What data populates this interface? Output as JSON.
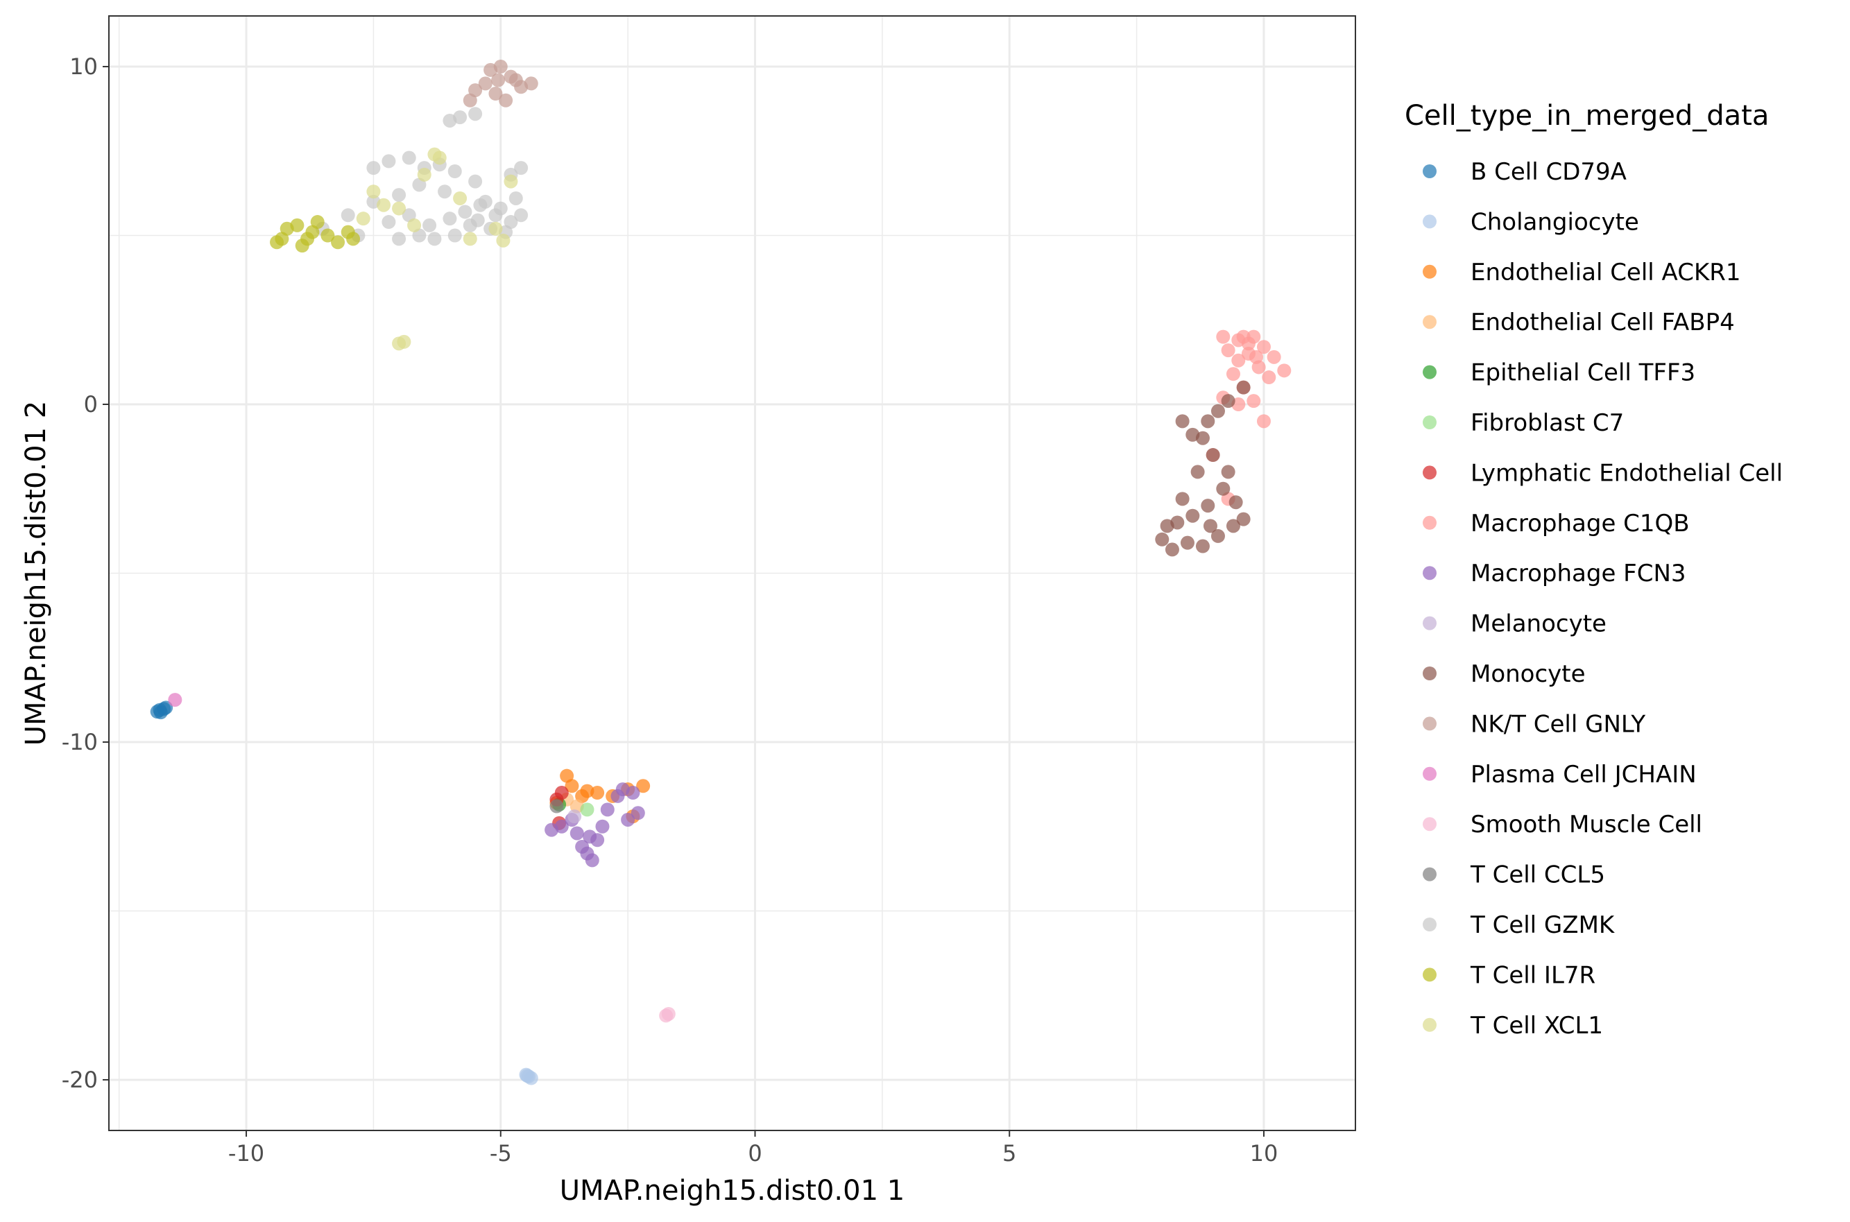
{
  "chart_data": {
    "type": "scatter",
    "title": "",
    "xlabel": "UMAP.neigh15.dist0.01 1",
    "ylabel": "UMAP.neigh15.dist0.01 2",
    "xlim": [
      -12.7,
      11.8
    ],
    "ylim": [
      -21.5,
      11.5
    ],
    "x_ticks": [
      -10,
      -5,
      0,
      5,
      10
    ],
    "x_tick_labels": [
      "-10",
      "-5",
      "0",
      "5",
      "10"
    ],
    "y_ticks": [
      -20,
      -10,
      0,
      10
    ],
    "y_tick_labels": [
      "-20",
      "-10",
      "0",
      "10"
    ],
    "grid": true,
    "legend": {
      "title": "Cell_type_in_merged_data",
      "position": "right"
    },
    "series": [
      {
        "name": "B Cell CD79A",
        "color": "#1f77b4",
        "points": [
          [
            -11.75,
            -9.1
          ],
          [
            -11.7,
            -9.05
          ],
          [
            -11.62,
            -9.02
          ],
          [
            -11.58,
            -8.98
          ],
          [
            -11.68,
            -9.12
          ]
        ]
      },
      {
        "name": "Cholangiocyte",
        "color": "#aec7e8",
        "points": [
          [
            -4.5,
            -19.85
          ],
          [
            -4.45,
            -19.9
          ],
          [
            -4.4,
            -19.95
          ],
          [
            -4.48,
            -19.88
          ]
        ]
      },
      {
        "name": "Endothelial Cell ACKR1",
        "color": "#ff7f0e",
        "points": [
          [
            -3.7,
            -11.0
          ],
          [
            -3.6,
            -11.3
          ],
          [
            -3.4,
            -11.6
          ],
          [
            -3.1,
            -11.5
          ],
          [
            -2.8,
            -11.6
          ],
          [
            -2.5,
            -11.4
          ],
          [
            -2.2,
            -11.3
          ],
          [
            -2.4,
            -12.2
          ],
          [
            -3.9,
            -11.8
          ],
          [
            -3.3,
            -11.45
          ]
        ]
      },
      {
        "name": "Endothelial Cell FABP4",
        "color": "#ffbb78",
        "points": [
          [
            -3.5,
            -11.9
          ],
          [
            -3.7,
            -11.7
          ]
        ]
      },
      {
        "name": "Epithelial Cell TFF3",
        "color": "#2ca02c",
        "points": [
          [
            -3.85,
            -11.85
          ]
        ]
      },
      {
        "name": "Fibroblast C7",
        "color": "#98df8a",
        "points": [
          [
            -3.3,
            -12.0
          ]
        ]
      },
      {
        "name": "Lymphatic Endothelial Cell",
        "color": "#d62728",
        "points": [
          [
            -3.8,
            -11.5
          ],
          [
            -3.9,
            -11.7
          ],
          [
            -3.85,
            -12.4
          ]
        ]
      },
      {
        "name": "Macrophage C1QB",
        "color": "#ff9896",
        "points": [
          [
            9.2,
            2.0
          ],
          [
            9.5,
            1.9
          ],
          [
            9.8,
            2.0
          ],
          [
            10.0,
            1.7
          ],
          [
            10.2,
            1.4
          ],
          [
            10.4,
            1.0
          ],
          [
            9.7,
            1.5
          ],
          [
            9.9,
            1.1
          ],
          [
            9.5,
            1.3
          ],
          [
            9.4,
            0.9
          ],
          [
            9.6,
            0.5
          ],
          [
            9.8,
            0.1
          ],
          [
            10.0,
            -0.5
          ],
          [
            9.3,
            1.6
          ],
          [
            10.1,
            0.8
          ],
          [
            9.7,
            1.8
          ],
          [
            9.2,
            0.2
          ],
          [
            9.0,
            -1.5
          ],
          [
            9.3,
            -2.8
          ],
          [
            9.5,
            0.0
          ],
          [
            9.85,
            1.4
          ],
          [
            9.6,
            2.0
          ]
        ]
      },
      {
        "name": "Macrophage FCN3",
        "color": "#9467bd",
        "points": [
          [
            -4.0,
            -12.6
          ],
          [
            -3.8,
            -12.5
          ],
          [
            -3.5,
            -12.7
          ],
          [
            -3.4,
            -13.1
          ],
          [
            -3.3,
            -13.3
          ],
          [
            -3.2,
            -13.5
          ],
          [
            -3.1,
            -12.9
          ],
          [
            -3.0,
            -12.5
          ],
          [
            -2.9,
            -12.0
          ],
          [
            -2.7,
            -11.6
          ],
          [
            -2.6,
            -11.4
          ],
          [
            -2.4,
            -11.5
          ],
          [
            -2.5,
            -12.3
          ],
          [
            -2.3,
            -12.1
          ],
          [
            -3.6,
            -12.3
          ],
          [
            -3.25,
            -12.8
          ]
        ]
      },
      {
        "name": "Melanocyte",
        "color": "#c5b0d5",
        "points": [
          [
            -3.55,
            -12.2
          ]
        ]
      },
      {
        "name": "Monocyte",
        "color": "#8c564b",
        "points": [
          [
            8.0,
            -4.0
          ],
          [
            8.2,
            -4.3
          ],
          [
            8.5,
            -4.1
          ],
          [
            8.8,
            -4.2
          ],
          [
            9.1,
            -3.9
          ],
          [
            9.4,
            -3.6
          ],
          [
            9.6,
            -3.4
          ],
          [
            8.3,
            -3.5
          ],
          [
            8.6,
            -3.3
          ],
          [
            8.9,
            -3.0
          ],
          [
            9.2,
            -2.5
          ],
          [
            9.3,
            -2.0
          ],
          [
            9.0,
            -1.5
          ],
          [
            8.8,
            -1.0
          ],
          [
            8.9,
            -0.5
          ],
          [
            9.1,
            -0.2
          ],
          [
            9.3,
            0.1
          ],
          [
            9.6,
            0.5
          ],
          [
            8.6,
            -0.9
          ],
          [
            8.4,
            -0.5
          ],
          [
            8.7,
            -2.0
          ],
          [
            8.4,
            -2.8
          ],
          [
            8.1,
            -3.6
          ],
          [
            8.95,
            -3.6
          ],
          [
            9.45,
            -2.9
          ]
        ]
      },
      {
        "name": "NK/T Cell GNLY",
        "color": "#c49c94",
        "points": [
          [
            -5.2,
            9.9
          ],
          [
            -5.0,
            10.0
          ],
          [
            -4.8,
            9.7
          ],
          [
            -4.6,
            9.4
          ],
          [
            -4.4,
            9.5
          ],
          [
            -5.3,
            9.5
          ],
          [
            -5.5,
            9.3
          ],
          [
            -5.1,
            9.2
          ],
          [
            -4.9,
            9.0
          ],
          [
            -5.6,
            9.0
          ],
          [
            -4.7,
            9.6
          ],
          [
            -5.05,
            9.6
          ]
        ]
      },
      {
        "name": "Plasma Cell JCHAIN",
        "color": "#e377c2",
        "points": [
          [
            -11.4,
            -8.75
          ]
        ]
      },
      {
        "name": "Smooth Muscle Cell",
        "color": "#f7b6d2",
        "points": [
          [
            -1.75,
            -18.1
          ],
          [
            -1.7,
            -18.05
          ]
        ]
      },
      {
        "name": "T Cell CCL5",
        "color": "#7f7f7f",
        "points": [
          [
            -3.9,
            -11.9
          ]
        ]
      },
      {
        "name": "T Cell GZMK",
        "color": "#c7c7c7",
        "points": [
          [
            -5.8,
            8.5
          ],
          [
            -6.0,
            8.4
          ],
          [
            -5.5,
            8.6
          ],
          [
            -7.5,
            7.0
          ],
          [
            -7.2,
            7.2
          ],
          [
            -6.8,
            7.3
          ],
          [
            -6.5,
            7.0
          ],
          [
            -6.2,
            7.1
          ],
          [
            -5.9,
            6.9
          ],
          [
            -6.6,
            6.5
          ],
          [
            -7.0,
            6.2
          ],
          [
            -7.5,
            6.0
          ],
          [
            -8.0,
            5.6
          ],
          [
            -8.5,
            5.2
          ],
          [
            -7.2,
            5.4
          ],
          [
            -6.8,
            5.6
          ],
          [
            -6.4,
            5.3
          ],
          [
            -6.0,
            5.5
          ],
          [
            -5.7,
            5.7
          ],
          [
            -5.4,
            5.9
          ],
          [
            -5.1,
            5.6
          ],
          [
            -4.8,
            5.4
          ],
          [
            -4.6,
            5.6
          ],
          [
            -4.7,
            6.1
          ],
          [
            -4.8,
            6.8
          ],
          [
            -4.6,
            7.0
          ],
          [
            -5.3,
            6.0
          ],
          [
            -5.9,
            5.0
          ],
          [
            -6.3,
            4.9
          ],
          [
            -5.6,
            5.3
          ],
          [
            -5.2,
            5.2
          ],
          [
            -5.0,
            5.8
          ],
          [
            -5.5,
            6.6
          ],
          [
            -6.1,
            6.3
          ],
          [
            -7.8,
            5.0
          ],
          [
            -7.0,
            4.9
          ],
          [
            -6.6,
            5.0
          ],
          [
            -4.9,
            5.1
          ],
          [
            -5.45,
            5.45
          ]
        ]
      },
      {
        "name": "T Cell IL7R",
        "color": "#bcbd22",
        "points": [
          [
            -9.4,
            4.8
          ],
          [
            -9.2,
            5.2
          ],
          [
            -9.0,
            5.3
          ],
          [
            -8.8,
            4.9
          ],
          [
            -8.6,
            5.4
          ],
          [
            -8.4,
            5.0
          ],
          [
            -8.2,
            4.8
          ],
          [
            -8.9,
            4.7
          ],
          [
            -9.3,
            4.9
          ],
          [
            -8.7,
            5.1
          ],
          [
            -8.0,
            5.1
          ],
          [
            -7.9,
            4.9
          ]
        ]
      },
      {
        "name": "T Cell XCL1",
        "color": "#dbdb8d",
        "points": [
          [
            -7.0,
            1.8
          ],
          [
            -6.9,
            1.85
          ],
          [
            -7.5,
            6.3
          ],
          [
            -7.3,
            5.9
          ],
          [
            -7.7,
            5.5
          ],
          [
            -6.3,
            7.4
          ],
          [
            -6.2,
            7.3
          ],
          [
            -6.5,
            6.8
          ],
          [
            -5.8,
            6.1
          ],
          [
            -5.1,
            5.2
          ],
          [
            -5.6,
            4.9
          ],
          [
            -6.7,
            5.3
          ],
          [
            -4.8,
            6.6
          ],
          [
            -7.0,
            5.8
          ],
          [
            -4.95,
            4.85
          ]
        ]
      }
    ]
  }
}
